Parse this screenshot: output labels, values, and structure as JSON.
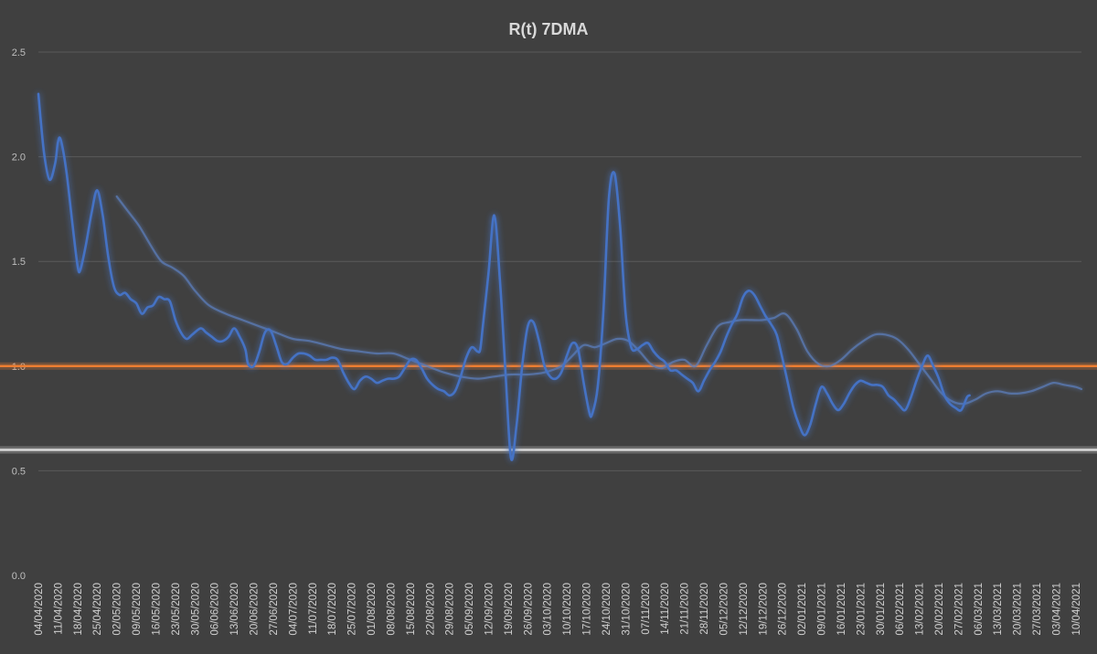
{
  "chart_data": {
    "type": "line",
    "title": "R(t) 7DMA",
    "xlabel": "",
    "ylabel": "",
    "ylim": [
      0,
      2.5
    ],
    "yticks": [
      "0.0",
      "0.5",
      "1.0",
      "1.5",
      "2.0",
      "2.5"
    ],
    "grid": true,
    "legend": "none",
    "x_start": "04/04/2020",
    "x_end": "12/04/2021",
    "x_tick_labels": [
      "04/04/2020",
      "11/04/2020",
      "18/04/2020",
      "25/04/2020",
      "02/05/2020",
      "09/05/2020",
      "16/05/2020",
      "23/05/2020",
      "30/05/2020",
      "06/06/2020",
      "13/06/2020",
      "20/06/2020",
      "27/06/2020",
      "04/07/2020",
      "11/07/2020",
      "18/07/2020",
      "25/07/2020",
      "01/08/2020",
      "08/08/2020",
      "15/08/2020",
      "22/08/2020",
      "29/08/2020",
      "05/09/2020",
      "12/09/2020",
      "19/09/2020",
      "26/09/2020",
      "03/10/2020",
      "10/10/2020",
      "17/10/2020",
      "24/10/2020",
      "31/10/2020",
      "07/11/2020",
      "14/11/2020",
      "21/11/2020",
      "28/11/2020",
      "05/12/2020",
      "12/12/2020",
      "19/12/2020",
      "26/12/2020",
      "02/01/2021",
      "09/01/2021",
      "16/01/2021",
      "23/01/2021",
      "30/01/2021",
      "06/02/2021",
      "13/02/2021",
      "20/02/2021",
      "27/02/2021",
      "06/03/2021",
      "13/03/2021",
      "20/03/2021",
      "27/03/2021",
      "03/04/2021",
      "10/04/2021"
    ],
    "reference_lines": [
      {
        "value": 1.0,
        "color": "#ed7d31"
      },
      {
        "value": 0.6,
        "color": "#d9d9d9"
      }
    ],
    "series": [
      {
        "color": "#4472c4",
        "points": [
          [
            "04/04/2020",
            2.3
          ],
          [
            "06/04/2020",
            2.02
          ],
          [
            "08/04/2020",
            1.89
          ],
          [
            "10/04/2020",
            1.97
          ],
          [
            "11/04/2020",
            2.07
          ],
          [
            "12/04/2020",
            2.08
          ],
          [
            "14/04/2020",
            1.93
          ],
          [
            "16/04/2020",
            1.7
          ],
          [
            "18/04/2020",
            1.48
          ],
          [
            "19/04/2020",
            1.46
          ],
          [
            "21/04/2020",
            1.58
          ],
          [
            "23/04/2020",
            1.73
          ],
          [
            "25/04/2020",
            1.84
          ],
          [
            "27/04/2020",
            1.72
          ],
          [
            "29/04/2020",
            1.52
          ],
          [
            "01/05/2020",
            1.38
          ],
          [
            "03/05/2020",
            1.34
          ],
          [
            "05/05/2020",
            1.35
          ],
          [
            "07/05/2020",
            1.32
          ],
          [
            "09/05/2020",
            1.3
          ],
          [
            "11/05/2020",
            1.25
          ],
          [
            "13/05/2020",
            1.28
          ],
          [
            "15/05/2020",
            1.29
          ],
          [
            "17/05/2020",
            1.33
          ],
          [
            "19/05/2020",
            1.32
          ],
          [
            "21/05/2020",
            1.31
          ],
          [
            "23/05/2020",
            1.22
          ],
          [
            "25/05/2020",
            1.16
          ],
          [
            "27/05/2020",
            1.13
          ],
          [
            "29/05/2020",
            1.15
          ],
          [
            "01/06/2020",
            1.18
          ],
          [
            "03/06/2020",
            1.16
          ],
          [
            "05/06/2020",
            1.14
          ],
          [
            "07/06/2020",
            1.12
          ],
          [
            "09/06/2020",
            1.12
          ],
          [
            "11/06/2020",
            1.14
          ],
          [
            "13/06/2020",
            1.18
          ],
          [
            "15/06/2020",
            1.14
          ],
          [
            "17/06/2020",
            1.08
          ],
          [
            "18/06/2020",
            1.01
          ],
          [
            "20/06/2020",
            1.0
          ],
          [
            "22/06/2020",
            1.07
          ],
          [
            "24/06/2020",
            1.16
          ],
          [
            "26/06/2020",
            1.17
          ],
          [
            "28/06/2020",
            1.1
          ],
          [
            "30/06/2020",
            1.02
          ],
          [
            "02/07/2020",
            1.01
          ],
          [
            "04/07/2020",
            1.04
          ],
          [
            "06/07/2020",
            1.06
          ],
          [
            "08/07/2020",
            1.06
          ],
          [
            "10/07/2020",
            1.05
          ],
          [
            "12/07/2020",
            1.03
          ],
          [
            "14/07/2020",
            1.03
          ],
          [
            "16/07/2020",
            1.03
          ],
          [
            "18/07/2020",
            1.04
          ],
          [
            "20/07/2020",
            1.03
          ],
          [
            "22/07/2020",
            0.97
          ],
          [
            "24/07/2020",
            0.92
          ],
          [
            "26/07/2020",
            0.89
          ],
          [
            "28/07/2020",
            0.93
          ],
          [
            "30/07/2020",
            0.95
          ],
          [
            "01/08/2020",
            0.94
          ],
          [
            "03/08/2020",
            0.92
          ],
          [
            "05/08/2020",
            0.93
          ],
          [
            "07/08/2020",
            0.94
          ],
          [
            "09/08/2020",
            0.94
          ],
          [
            "11/08/2020",
            0.95
          ],
          [
            "13/08/2020",
            0.99
          ],
          [
            "15/08/2020",
            1.03
          ],
          [
            "17/08/2020",
            1.03
          ],
          [
            "19/08/2020",
            0.99
          ],
          [
            "21/08/2020",
            0.94
          ],
          [
            "23/08/2020",
            0.91
          ],
          [
            "25/08/2020",
            0.89
          ],
          [
            "27/08/2020",
            0.88
          ],
          [
            "29/08/2020",
            0.86
          ],
          [
            "31/08/2020",
            0.88
          ],
          [
            "02/09/2020",
            0.95
          ],
          [
            "04/09/2020",
            1.04
          ],
          [
            "06/09/2020",
            1.09
          ],
          [
            "08/09/2020",
            1.07
          ],
          [
            "09/09/2020",
            1.08
          ],
          [
            "10/09/2020",
            1.2
          ],
          [
            "12/09/2020",
            1.45
          ],
          [
            "14/09/2020",
            1.72
          ],
          [
            "16/09/2020",
            1.42
          ],
          [
            "18/09/2020",
            0.98
          ],
          [
            "20/09/2020",
            0.56
          ],
          [
            "22/09/2020",
            0.72
          ],
          [
            "24/09/2020",
            1.0
          ],
          [
            "26/09/2020",
            1.19
          ],
          [
            "28/09/2020",
            1.21
          ],
          [
            "30/09/2020",
            1.12
          ],
          [
            "02/10/2020",
            1.0
          ],
          [
            "04/10/2020",
            0.95
          ],
          [
            "06/10/2020",
            0.94
          ],
          [
            "08/10/2020",
            0.97
          ],
          [
            "10/10/2020",
            1.05
          ],
          [
            "12/10/2020",
            1.11
          ],
          [
            "14/10/2020",
            1.08
          ],
          [
            "16/10/2020",
            0.92
          ],
          [
            "18/10/2020",
            0.78
          ],
          [
            "19/10/2020",
            0.77
          ],
          [
            "21/10/2020",
            0.9
          ],
          [
            "23/10/2020",
            1.25
          ],
          [
            "25/10/2020",
            1.8
          ],
          [
            "27/10/2020",
            1.92
          ],
          [
            "29/10/2020",
            1.67
          ],
          [
            "31/10/2020",
            1.25
          ],
          [
            "02/11/2020",
            1.09
          ],
          [
            "04/11/2020",
            1.08
          ],
          [
            "06/11/2020",
            1.1
          ],
          [
            "08/11/2020",
            1.11
          ],
          [
            "10/11/2020",
            1.07
          ],
          [
            "12/11/2020",
            1.04
          ],
          [
            "14/11/2020",
            1.02
          ],
          [
            "16/11/2020",
            0.98
          ],
          [
            "18/11/2020",
            0.98
          ],
          [
            "20/11/2020",
            0.96
          ],
          [
            "22/11/2020",
            0.94
          ],
          [
            "24/11/2020",
            0.92
          ],
          [
            "26/11/2020",
            0.88
          ],
          [
            "28/11/2020",
            0.93
          ],
          [
            "30/11/2020",
            0.98
          ],
          [
            "02/12/2020",
            1.02
          ],
          [
            "04/12/2020",
            1.07
          ],
          [
            "06/12/2020",
            1.14
          ],
          [
            "08/12/2020",
            1.2
          ],
          [
            "10/12/2020",
            1.25
          ],
          [
            "12/12/2020",
            1.33
          ],
          [
            "14/12/2020",
            1.36
          ],
          [
            "16/12/2020",
            1.34
          ],
          [
            "18/12/2020",
            1.29
          ],
          [
            "20/12/2020",
            1.24
          ],
          [
            "22/12/2020",
            1.2
          ],
          [
            "24/12/2020",
            1.15
          ],
          [
            "26/12/2020",
            1.04
          ],
          [
            "28/12/2020",
            0.92
          ],
          [
            "30/12/2020",
            0.8
          ],
          [
            "01/01/2021",
            0.72
          ],
          [
            "03/01/2021",
            0.67
          ],
          [
            "05/01/2021",
            0.72
          ],
          [
            "07/01/2021",
            0.82
          ],
          [
            "09/01/2021",
            0.9
          ],
          [
            "11/01/2021",
            0.87
          ],
          [
            "13/01/2021",
            0.82
          ],
          [
            "15/01/2021",
            0.79
          ],
          [
            "17/01/2021",
            0.82
          ],
          [
            "19/01/2021",
            0.87
          ],
          [
            "21/01/2021",
            0.91
          ],
          [
            "23/01/2021",
            0.93
          ],
          [
            "25/01/2021",
            0.92
          ],
          [
            "27/01/2021",
            0.91
          ],
          [
            "29/01/2021",
            0.91
          ],
          [
            "31/01/2021",
            0.9
          ],
          [
            "02/02/2021",
            0.86
          ],
          [
            "04/02/2021",
            0.84
          ],
          [
            "06/02/2021",
            0.81
          ],
          [
            "08/02/2021",
            0.79
          ],
          [
            "10/02/2021",
            0.85
          ],
          [
            "12/02/2021",
            0.93
          ],
          [
            "14/02/2021",
            1.0
          ],
          [
            "16/02/2021",
            1.05
          ],
          [
            "18/02/2021",
            1.0
          ],
          [
            "20/02/2021",
            0.94
          ],
          [
            "22/02/2021",
            0.86
          ],
          [
            "24/02/2021",
            0.82
          ],
          [
            "26/02/2021",
            0.8
          ],
          [
            "28/02/2021",
            0.79
          ],
          [
            "02/03/2021",
            0.85
          ],
          [
            "03/03/2021",
            0.86
          ]
        ]
      },
      {
        "color": "#5b7cb8",
        "points": [
          [
            "02/05/2020",
            1.81
          ],
          [
            "06/05/2020",
            1.74
          ],
          [
            "10/05/2020",
            1.67
          ],
          [
            "14/05/2020",
            1.58
          ],
          [
            "18/05/2020",
            1.5
          ],
          [
            "22/05/2020",
            1.47
          ],
          [
            "26/05/2020",
            1.43
          ],
          [
            "30/05/2020",
            1.36
          ],
          [
            "04/06/2020",
            1.29
          ],
          [
            "10/06/2020",
            1.25
          ],
          [
            "16/06/2020",
            1.22
          ],
          [
            "22/06/2020",
            1.19
          ],
          [
            "28/06/2020",
            1.16
          ],
          [
            "04/07/2020",
            1.13
          ],
          [
            "10/07/2020",
            1.12
          ],
          [
            "16/07/2020",
            1.1
          ],
          [
            "22/07/2020",
            1.08
          ],
          [
            "28/07/2020",
            1.07
          ],
          [
            "03/08/2020",
            1.06
          ],
          [
            "09/08/2020",
            1.06
          ],
          [
            "15/08/2020",
            1.03
          ],
          [
            "21/08/2020",
            1.0
          ],
          [
            "27/08/2020",
            0.97
          ],
          [
            "02/09/2020",
            0.95
          ],
          [
            "08/09/2020",
            0.94
          ],
          [
            "14/09/2020",
            0.95
          ],
          [
            "20/09/2020",
            0.96
          ],
          [
            "26/09/2020",
            0.96
          ],
          [
            "02/10/2020",
            0.97
          ],
          [
            "08/10/2020",
            1.0
          ],
          [
            "12/10/2020",
            1.05
          ],
          [
            "16/10/2020",
            1.1
          ],
          [
            "20/10/2020",
            1.09
          ],
          [
            "24/10/2020",
            1.11
          ],
          [
            "28/10/2020",
            1.13
          ],
          [
            "01/11/2020",
            1.12
          ],
          [
            "05/11/2020",
            1.07
          ],
          [
            "09/11/2020",
            1.01
          ],
          [
            "13/11/2020",
            0.99
          ],
          [
            "17/11/2020",
            1.02
          ],
          [
            "21/11/2020",
            1.03
          ],
          [
            "25/11/2020",
            1.0
          ],
          [
            "29/11/2020",
            1.1
          ],
          [
            "03/12/2020",
            1.19
          ],
          [
            "07/12/2020",
            1.21
          ],
          [
            "11/12/2020",
            1.22
          ],
          [
            "15/12/2020",
            1.22
          ],
          [
            "19/12/2020",
            1.22
          ],
          [
            "23/12/2020",
            1.23
          ],
          [
            "27/12/2020",
            1.25
          ],
          [
            "31/12/2020",
            1.18
          ],
          [
            "04/01/2021",
            1.07
          ],
          [
            "08/01/2021",
            1.01
          ],
          [
            "12/01/2021",
            1.0
          ],
          [
            "16/01/2021",
            1.03
          ],
          [
            "20/01/2021",
            1.08
          ],
          [
            "24/01/2021",
            1.12
          ],
          [
            "28/01/2021",
            1.15
          ],
          [
            "01/02/2021",
            1.15
          ],
          [
            "05/02/2021",
            1.13
          ],
          [
            "09/02/2021",
            1.08
          ],
          [
            "13/02/2021",
            1.01
          ],
          [
            "17/02/2021",
            0.94
          ],
          [
            "21/02/2021",
            0.87
          ],
          [
            "25/02/2021",
            0.83
          ],
          [
            "01/03/2021",
            0.82
          ],
          [
            "05/03/2021",
            0.84
          ],
          [
            "09/03/2021",
            0.87
          ],
          [
            "13/03/2021",
            0.88
          ],
          [
            "17/03/2021",
            0.87
          ],
          [
            "21/03/2021",
            0.87
          ],
          [
            "25/03/2021",
            0.88
          ],
          [
            "29/03/2021",
            0.9
          ],
          [
            "02/04/2021",
            0.92
          ],
          [
            "06/04/2021",
            0.91
          ],
          [
            "10/04/2021",
            0.9
          ],
          [
            "12/04/2021",
            0.89
          ]
        ]
      }
    ]
  }
}
